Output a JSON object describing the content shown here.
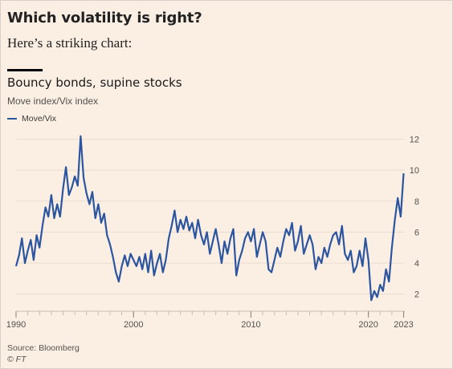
{
  "headline": "Which volatility is right?",
  "intro": "Here’s a striking chart:",
  "source": "Source: Bloomberg",
  "copyright": "© FT",
  "colors": {
    "background": "#fbefe4",
    "series": "#2c55a0",
    "grid": "#e8dccf",
    "text": "#54514e"
  },
  "chart_data": {
    "type": "line",
    "title": "Bouncy bonds, supine stocks",
    "subtitle": "Move index/Vix index",
    "xlabel": "",
    "ylabel": "",
    "xlim": [
      1990,
      2023.1
    ],
    "ylim": [
      1.2,
      12.6
    ],
    "x_ticks": [
      1990,
      2000,
      2010,
      2020,
      2023
    ],
    "x_tick_labels": [
      "1990",
      "2000",
      "2010",
      "2020",
      "2023"
    ],
    "y_ticks": [
      2,
      4,
      6,
      8,
      10,
      12
    ],
    "y_tick_labels": [
      "2",
      "4",
      "6",
      "8",
      "10",
      "12"
    ],
    "grid": true,
    "y_axis_side": "right",
    "legend_position": "top-left",
    "series": [
      {
        "name": "Move/Vix",
        "color": "#2c55a0",
        "points": [
          [
            1990.0,
            3.8
          ],
          [
            1990.25,
            4.5
          ],
          [
            1990.5,
            5.6
          ],
          [
            1990.75,
            4.0
          ],
          [
            1991.0,
            4.8
          ],
          [
            1991.25,
            5.5
          ],
          [
            1991.5,
            4.2
          ],
          [
            1991.75,
            5.8
          ],
          [
            1992.0,
            5.0
          ],
          [
            1992.25,
            6.4
          ],
          [
            1992.5,
            7.6
          ],
          [
            1992.75,
            7.0
          ],
          [
            1993.0,
            8.4
          ],
          [
            1993.25,
            6.9
          ],
          [
            1993.5,
            7.8
          ],
          [
            1993.75,
            7.0
          ],
          [
            1994.0,
            8.8
          ],
          [
            1994.25,
            10.2
          ],
          [
            1994.5,
            8.4
          ],
          [
            1994.75,
            8.9
          ],
          [
            1995.0,
            9.6
          ],
          [
            1995.25,
            9.0
          ],
          [
            1995.5,
            12.2
          ],
          [
            1995.75,
            9.5
          ],
          [
            1996.0,
            8.5
          ],
          [
            1996.25,
            7.8
          ],
          [
            1996.5,
            8.6
          ],
          [
            1996.75,
            6.9
          ],
          [
            1997.0,
            7.8
          ],
          [
            1997.25,
            6.6
          ],
          [
            1997.5,
            7.2
          ],
          [
            1997.75,
            5.8
          ],
          [
            1998.0,
            5.2
          ],
          [
            1998.25,
            4.4
          ],
          [
            1998.5,
            3.4
          ],
          [
            1998.75,
            2.8
          ],
          [
            1999.0,
            3.8
          ],
          [
            1999.25,
            4.5
          ],
          [
            1999.5,
            3.8
          ],
          [
            1999.75,
            4.6
          ],
          [
            2000.0,
            4.2
          ],
          [
            2000.25,
            3.8
          ],
          [
            2000.5,
            4.4
          ],
          [
            2000.75,
            3.6
          ],
          [
            2001.0,
            4.6
          ],
          [
            2001.25,
            3.4
          ],
          [
            2001.5,
            4.8
          ],
          [
            2001.75,
            3.2
          ],
          [
            2002.0,
            4.0
          ],
          [
            2002.25,
            4.6
          ],
          [
            2002.5,
            3.4
          ],
          [
            2002.75,
            4.2
          ],
          [
            2003.0,
            5.6
          ],
          [
            2003.25,
            6.4
          ],
          [
            2003.5,
            7.4
          ],
          [
            2003.75,
            6.0
          ],
          [
            2004.0,
            6.8
          ],
          [
            2004.25,
            6.2
          ],
          [
            2004.5,
            7.0
          ],
          [
            2004.75,
            6.1
          ],
          [
            2005.0,
            6.6
          ],
          [
            2005.25,
            5.6
          ],
          [
            2005.5,
            6.8
          ],
          [
            2005.75,
            5.8
          ],
          [
            2006.0,
            5.2
          ],
          [
            2006.25,
            6.0
          ],
          [
            2006.5,
            4.6
          ],
          [
            2006.75,
            5.4
          ],
          [
            2007.0,
            6.2
          ],
          [
            2007.25,
            5.2
          ],
          [
            2007.5,
            4.0
          ],
          [
            2007.75,
            5.4
          ],
          [
            2008.0,
            4.6
          ],
          [
            2008.25,
            5.6
          ],
          [
            2008.5,
            6.2
          ],
          [
            2008.75,
            3.2
          ],
          [
            2009.0,
            4.2
          ],
          [
            2009.25,
            4.8
          ],
          [
            2009.5,
            5.6
          ],
          [
            2009.75,
            6.0
          ],
          [
            2010.0,
            5.4
          ],
          [
            2010.25,
            6.2
          ],
          [
            2010.5,
            4.4
          ],
          [
            2010.75,
            5.2
          ],
          [
            2011.0,
            6.0
          ],
          [
            2011.25,
            5.4
          ],
          [
            2011.5,
            3.6
          ],
          [
            2011.75,
            3.4
          ],
          [
            2012.0,
            4.2
          ],
          [
            2012.25,
            5.0
          ],
          [
            2012.5,
            4.4
          ],
          [
            2012.75,
            5.4
          ],
          [
            2013.0,
            6.2
          ],
          [
            2013.25,
            5.8
          ],
          [
            2013.5,
            6.6
          ],
          [
            2013.75,
            4.8
          ],
          [
            2014.0,
            5.4
          ],
          [
            2014.25,
            6.4
          ],
          [
            2014.5,
            4.6
          ],
          [
            2014.75,
            5.2
          ],
          [
            2015.0,
            5.8
          ],
          [
            2015.25,
            5.2
          ],
          [
            2015.5,
            3.6
          ],
          [
            2015.75,
            4.4
          ],
          [
            2016.0,
            4.0
          ],
          [
            2016.25,
            5.0
          ],
          [
            2016.5,
            4.4
          ],
          [
            2016.75,
            5.2
          ],
          [
            2017.0,
            5.8
          ],
          [
            2017.25,
            6.0
          ],
          [
            2017.5,
            5.2
          ],
          [
            2017.75,
            6.4
          ],
          [
            2018.0,
            4.6
          ],
          [
            2018.25,
            4.2
          ],
          [
            2018.5,
            4.8
          ],
          [
            2018.75,
            3.4
          ],
          [
            2019.0,
            3.8
          ],
          [
            2019.25,
            4.8
          ],
          [
            2019.5,
            3.8
          ],
          [
            2019.75,
            5.6
          ],
          [
            2020.0,
            4.2
          ],
          [
            2020.25,
            1.6
          ],
          [
            2020.5,
            2.2
          ],
          [
            2020.75,
            1.8
          ],
          [
            2021.0,
            2.6
          ],
          [
            2021.25,
            2.2
          ],
          [
            2021.5,
            3.6
          ],
          [
            2021.75,
            2.8
          ],
          [
            2022.0,
            5.0
          ],
          [
            2022.25,
            6.8
          ],
          [
            2022.5,
            8.2
          ],
          [
            2022.75,
            7.0
          ],
          [
            2023.0,
            9.8
          ]
        ]
      }
    ]
  }
}
